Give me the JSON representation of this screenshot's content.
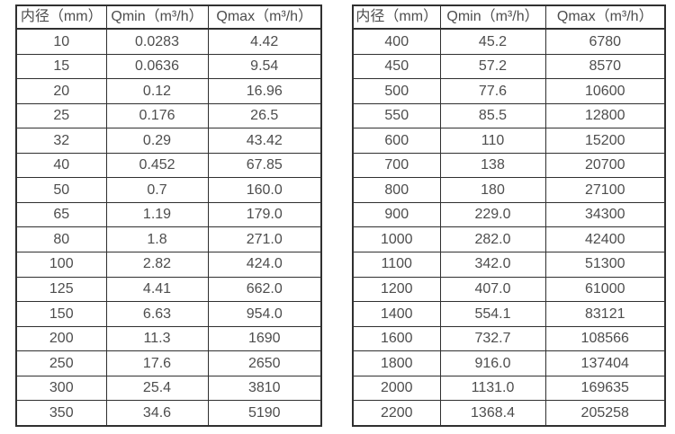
{
  "colors": {
    "background": "#ffffff",
    "border": "#303030",
    "text": "#4d4d4d"
  },
  "table_left": {
    "headers": [
      "内径（mm）",
      "Qmin（m³/h）",
      "Qmax（m³/h）"
    ],
    "rows": [
      [
        "10",
        "0.0283",
        "4.42"
      ],
      [
        "15",
        "0.0636",
        "9.54"
      ],
      [
        "20",
        "0.12",
        "16.96"
      ],
      [
        "25",
        "0.176",
        "26.5"
      ],
      [
        "32",
        "0.29",
        "43.42"
      ],
      [
        "40",
        "0.452",
        "67.85"
      ],
      [
        "50",
        "0.7",
        "160.0"
      ],
      [
        "65",
        "1.19",
        "179.0"
      ],
      [
        "80",
        "1.8",
        "271.0"
      ],
      [
        "100",
        "2.82",
        "424.0"
      ],
      [
        "125",
        "4.41",
        "662.0"
      ],
      [
        "150",
        "6.63",
        "954.0"
      ],
      [
        "200",
        "11.3",
        "1690"
      ],
      [
        "250",
        "17.6",
        "2650"
      ],
      [
        "300",
        "25.4",
        "3810"
      ],
      [
        "350",
        "34.6",
        "5190"
      ]
    ]
  },
  "table_right": {
    "headers": [
      "内径（mm）",
      "Qmin（m³/h）",
      "Qmax（m³/h）"
    ],
    "rows": [
      [
        "400",
        "45.2",
        "6780"
      ],
      [
        "450",
        "57.2",
        "8570"
      ],
      [
        "500",
        "77.6",
        "10600"
      ],
      [
        "550",
        "85.5",
        "12800"
      ],
      [
        "600",
        "110",
        "15200"
      ],
      [
        "700",
        "138",
        "20700"
      ],
      [
        "800",
        "180",
        "27100"
      ],
      [
        "900",
        "229.0",
        "34300"
      ],
      [
        "1000",
        "282.0",
        "42400"
      ],
      [
        "1100",
        "342.0",
        "51300"
      ],
      [
        "1200",
        "407.0",
        "61000"
      ],
      [
        "1400",
        "554.1",
        "83121"
      ],
      [
        "1600",
        "732.7",
        "108566"
      ],
      [
        "1800",
        "916.0",
        "137404"
      ],
      [
        "2000",
        "1131.0",
        "169635"
      ],
      [
        "2200",
        "1368.4",
        "205258"
      ]
    ]
  }
}
